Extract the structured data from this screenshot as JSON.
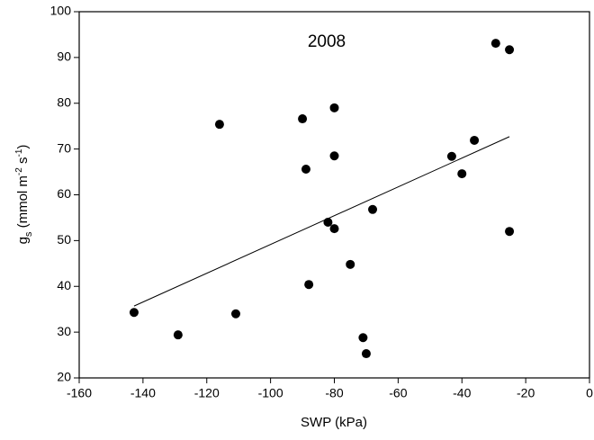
{
  "chart_data": {
    "type": "scatter",
    "annotation": "2008",
    "xlabel": "SWP (kPa)",
    "ylabel": [
      "g",
      "s",
      " (mmol m",
      "-2",
      " s",
      "-1",
      ")"
    ],
    "x": [
      -142.8,
      -129,
      -116,
      -110.9,
      -90,
      -88.9,
      -88,
      -80,
      -82,
      -80,
      -80,
      -75,
      -71,
      -70,
      -68,
      -43.2,
      -40,
      -36.1,
      -29.4,
      -25.1,
      -25.1
    ],
    "values": [
      34.3,
      29.4,
      75.4,
      34,
      76.6,
      65.6,
      40.4,
      79,
      54,
      68.5,
      52.6,
      44.8,
      28.8,
      25.3,
      56.8,
      68.4,
      64.6,
      71.9,
      93.1,
      91.7,
      52
    ],
    "color": "#000000",
    "fit": {
      "x": [
        -142.8,
        -25.1
      ],
      "y": [
        35.7,
        72.7
      ]
    },
    "xlim": [
      -160,
      0
    ],
    "xticks": [
      -160,
      -140,
      -120,
      -100,
      -80,
      -60,
      -40,
      -20,
      0
    ],
    "ylim": [
      20,
      100
    ],
    "yticks": [
      20,
      30,
      40,
      50,
      60,
      70,
      80,
      90,
      100
    ]
  }
}
